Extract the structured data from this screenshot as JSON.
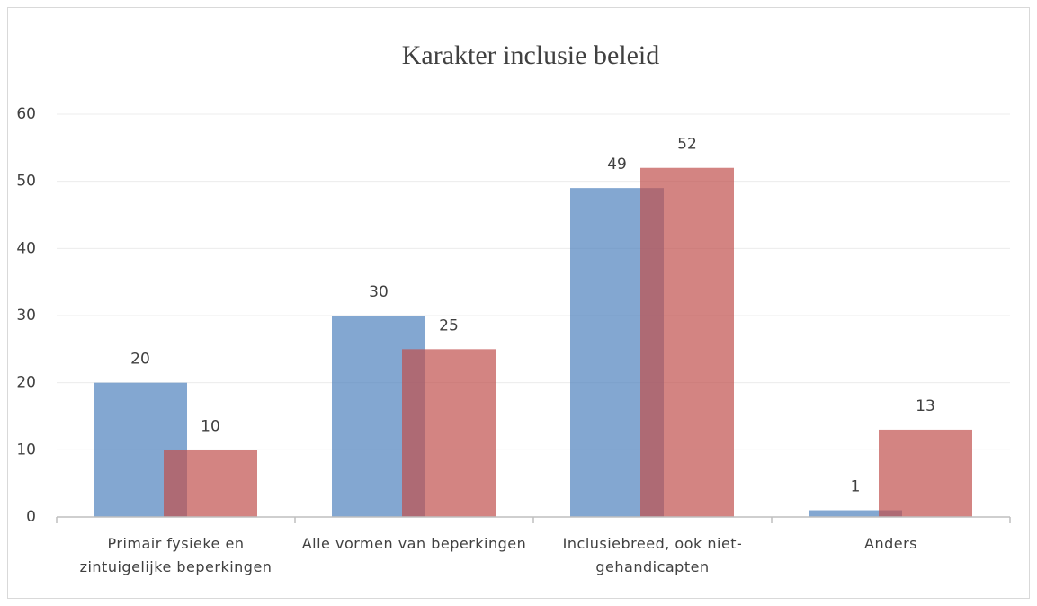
{
  "chart_data": {
    "type": "bar",
    "title": "Karakter inclusie beleid",
    "categories": [
      "Primair fysieke en zintuigelijke beperkingen",
      "Alle vormen van beperkingen",
      "Inclusiebreed, ook niet-gehandicapten",
      "Anders"
    ],
    "series": [
      {
        "color": "#4f81bd",
        "values": [
          20,
          30,
          49,
          1
        ]
      },
      {
        "color": "#c0504d",
        "values": [
          10,
          25,
          52,
          13
        ]
      }
    ],
    "ylim": [
      0,
      60
    ],
    "yticks": [
      0,
      10,
      20,
      30,
      40,
      50,
      60
    ],
    "grid": true
  }
}
